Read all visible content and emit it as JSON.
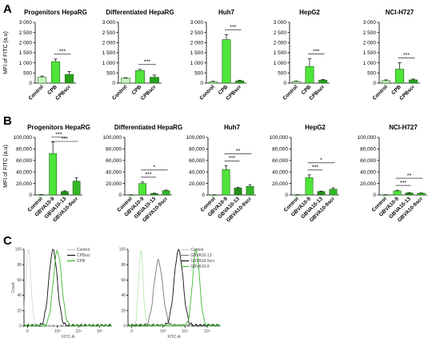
{
  "panels": {
    "a": "A",
    "b": "B",
    "c": "C"
  },
  "colors": {
    "control": "#c8f5c0",
    "cpb": "#4fe43a",
    "cpbscr": "#28a11c",
    "gbva10_9": "#4fe43a",
    "gbva10_13": "#258a1a",
    "gbva10_9scr": "#34b528"
  },
  "chart_data": [
    {
      "id": "A1",
      "type": "bar",
      "title": "Progenitors HepaRG",
      "ylabel": "MFI of FITC (a.u)",
      "categories": [
        "Control",
        "CPB",
        "CPBscr"
      ],
      "values": [
        290,
        1060,
        430
      ],
      "errors": [
        60,
        130,
        140
      ],
      "ylim": [
        0,
        3000
      ],
      "yticks": [
        "0",
        "500",
        "1 000",
        "1 500",
        "2 000",
        "2 500",
        "3 000"
      ],
      "sig": [
        {
          "from": 1,
          "to": 2,
          "label": "***"
        }
      ]
    },
    {
      "id": "A2",
      "type": "bar",
      "title": "Differentiated HepaRG",
      "ylabel": "",
      "categories": [
        "Control",
        "CPB",
        "CPBscr"
      ],
      "values": [
        240,
        620,
        290
      ],
      "errors": [
        30,
        60,
        110
      ],
      "ylim": [
        0,
        3000
      ],
      "yticks": [
        "0",
        "500",
        "1 000",
        "1 500",
        "2 000",
        "2 500",
        "3 000"
      ],
      "sig": [
        {
          "from": 1,
          "to": 2,
          "label": "***"
        }
      ]
    },
    {
      "id": "A3",
      "type": "bar",
      "title": "Huh7",
      "ylabel": "",
      "categories": [
        "Control",
        "CPB",
        "CPBscr"
      ],
      "values": [
        70,
        2150,
        110
      ],
      "errors": [
        20,
        250,
        30
      ],
      "ylim": [
        0,
        3000
      ],
      "yticks": [
        "0",
        "500",
        "1 000",
        "1 500",
        "2 000",
        "2 500",
        "3 000"
      ],
      "sig": [
        {
          "from": 1,
          "to": 2,
          "label": "***"
        }
      ]
    },
    {
      "id": "A4",
      "type": "bar",
      "title": "HepG2",
      "ylabel": "",
      "categories": [
        "Control",
        "CPB",
        "CPBscr"
      ],
      "values": [
        80,
        820,
        150
      ],
      "errors": [
        20,
        380,
        30
      ],
      "ylim": [
        0,
        3000
      ],
      "yticks": [
        "0",
        "500",
        "1 000",
        "1 500",
        "2 000",
        "2 500",
        "3 000"
      ],
      "sig": [
        {
          "from": 1,
          "to": 2,
          "label": "***"
        }
      ]
    },
    {
      "id": "A5",
      "type": "bar",
      "title": "NCI-H727",
      "ylabel": "",
      "categories": [
        "Control",
        "CPB",
        "CPBscr"
      ],
      "values": [
        120,
        690,
        160
      ],
      "errors": [
        40,
        320,
        40
      ],
      "ylim": [
        0,
        3000
      ],
      "yticks": [
        "0",
        "500",
        "1 000",
        "1 500",
        "2 000",
        "2 500",
        "3 000"
      ],
      "sig": [
        {
          "from": 1,
          "to": 2,
          "label": "***"
        }
      ]
    },
    {
      "id": "B1",
      "type": "bar",
      "title": "Progenitors HepaRG",
      "ylabel": "MFI of FITC (a.u)",
      "categories": [
        "Control",
        "GBVA10-9",
        "GBVA10-13",
        "GBVA10-9scr"
      ],
      "values": [
        500,
        72000,
        6000,
        24000
      ],
      "errors": [
        200,
        20000,
        1200,
        6000
      ],
      "ylim": [
        0,
        100000
      ],
      "yticks": [
        "0",
        "20,000",
        "40,000",
        "60,000",
        "80,000",
        "100,000"
      ],
      "sig": [
        {
          "from": 1,
          "to": 2,
          "label": "***",
          "level": 0
        },
        {
          "from": 1,
          "to": 3,
          "label": "***",
          "level": 1
        }
      ]
    },
    {
      "id": "B2",
      "type": "bar",
      "title": "Differentiated HepaRG",
      "ylabel": "",
      "categories": [
        "Control",
        "GBVA10-9",
        "GBVA10-13",
        "GBVA10-9scr"
      ],
      "values": [
        300,
        20000,
        2500,
        7500
      ],
      "errors": [
        100,
        2500,
        600,
        1000
      ],
      "ylim": [
        0,
        100000
      ],
      "yticks": [
        "0",
        "20,000",
        "40,000",
        "60,000",
        "80,000",
        "100,000"
      ],
      "sig": [
        {
          "from": 1,
          "to": 2,
          "label": "***",
          "level": 0
        },
        {
          "from": 1,
          "to": 3,
          "label": "*",
          "level": 1
        }
      ]
    },
    {
      "id": "B3",
      "type": "bar",
      "title": "Huh7",
      "ylabel": "",
      "categories": [
        "Control",
        "GBVA10-9",
        "GBVA10-13",
        "GBVA10-9scr"
      ],
      "values": [
        300,
        44000,
        12000,
        15000
      ],
      "errors": [
        100,
        7000,
        1500,
        3000
      ],
      "ylim": [
        0,
        100000
      ],
      "yticks": [
        "0",
        "20,000",
        "40,000",
        "60,000",
        "80,000",
        "100,000"
      ],
      "sig": [
        {
          "from": 1,
          "to": 2,
          "label": "***",
          "level": 0
        },
        {
          "from": 1,
          "to": 3,
          "label": "**",
          "level": 1
        }
      ]
    },
    {
      "id": "B4",
      "type": "bar",
      "title": "HepG2",
      "ylabel": "",
      "categories": [
        "Control",
        "GBVA10-9",
        "GBVA10-13",
        "GBVA10-9scr"
      ],
      "values": [
        300,
        30000,
        6000,
        10000
      ],
      "errors": [
        100,
        5000,
        700,
        2500
      ],
      "ylim": [
        0,
        100000
      ],
      "yticks": [
        "0",
        "20,000",
        "40,000",
        "60,000",
        "80,000",
        "100,000"
      ],
      "sig": [
        {
          "from": 1,
          "to": 2,
          "label": "***",
          "level": 0
        },
        {
          "from": 1,
          "to": 3,
          "label": "*",
          "level": 1
        }
      ]
    },
    {
      "id": "B5",
      "type": "bar",
      "title": "NCI-H727",
      "ylabel": "",
      "categories": [
        "Control",
        "GBVA10-9",
        "GBVA10-13",
        "GBVA10-9scr"
      ],
      "values": [
        300,
        7000,
        3500,
        3000
      ],
      "errors": [
        100,
        1200,
        600,
        600
      ],
      "ylim": [
        0,
        100000
      ],
      "yticks": [
        "0",
        "20,000",
        "40,000",
        "60,000",
        "80,000",
        "100,000"
      ],
      "sig": [
        {
          "from": 1,
          "to": 2,
          "label": "***",
          "level": 0
        },
        {
          "from": 1,
          "to": 3,
          "label": "**",
          "level": 1
        }
      ]
    }
  ],
  "histograms": [
    {
      "id": "C1",
      "type": "area",
      "xlabel": "FITC-A",
      "ylabel": "Count",
      "xticks": [
        "0",
        "10³",
        "10⁴",
        "10⁵"
      ],
      "yticks": [
        "0",
        "20",
        "40",
        "60",
        "80",
        "100"
      ],
      "legend": [
        {
          "name": "Control",
          "color": "#c4c4c4"
        },
        {
          "name": "CPBscr",
          "color": "#111111"
        },
        {
          "name": "CPB",
          "color": "#3db82e"
        }
      ],
      "curves": [
        {
          "color": "#c4c4c4",
          "dash": true,
          "center": 0.05,
          "width": 0.06,
          "height": 100
        },
        {
          "color": "#111111",
          "center": 0.33,
          "width": 0.1,
          "height": 100
        },
        {
          "color": "#3db82e",
          "center": 0.38,
          "width": 0.1,
          "height": 98
        }
      ]
    },
    {
      "id": "C2",
      "type": "area",
      "xlabel": "FITC-A",
      "ylabel": "",
      "xticks": [
        "0",
        "10³",
        "10⁴",
        "10⁵"
      ],
      "yticks": [
        "0",
        "20",
        "40",
        "60",
        "80",
        "100"
      ],
      "legend": [
        {
          "name": "Control",
          "color": "#c4c4c4"
        },
        {
          "name": "GBVA10-13",
          "color": "#777777"
        },
        {
          "name": "GBVA10-9scr",
          "color": "#111111"
        },
        {
          "name": "GBVA10-9",
          "color": "#3db82e"
        }
      ],
      "curves": [
        {
          "color": "#b9e8b1",
          "center": 0.14,
          "width": 0.05,
          "height": 100
        },
        {
          "color": "#777777",
          "center": 0.33,
          "width": 0.1,
          "height": 85
        },
        {
          "color": "#111111",
          "center": 0.55,
          "width": 0.1,
          "height": 100
        },
        {
          "color": "#3db82e",
          "center": 0.74,
          "width": 0.08,
          "height": 100
        }
      ]
    }
  ]
}
